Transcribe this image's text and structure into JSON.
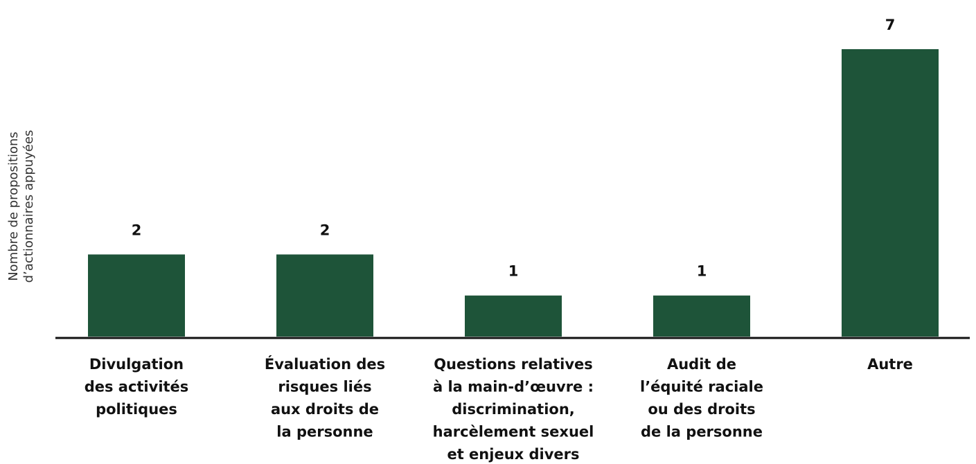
{
  "chart_data": {
    "type": "bar",
    "ylabel": [
      "Nombre de propositions",
      "d’actionnaires appuyées"
    ],
    "categories": [
      [
        "Divulgation",
        "des activités",
        "politiques"
      ],
      [
        "Évaluation des",
        "risques liés",
        "aux droits de",
        "la personne"
      ],
      [
        "Questions relatives",
        "à la main-d’œuvre :",
        "discrimination,",
        "harcèlement sexuel",
        "et enjeux divers"
      ],
      [
        "Audit de",
        "l’équité raciale",
        "ou des droits",
        "de la personne"
      ],
      [
        "Autre"
      ]
    ],
    "values": [
      2,
      2,
      1,
      1,
      7
    ],
    "color": "#1e5439"
  }
}
